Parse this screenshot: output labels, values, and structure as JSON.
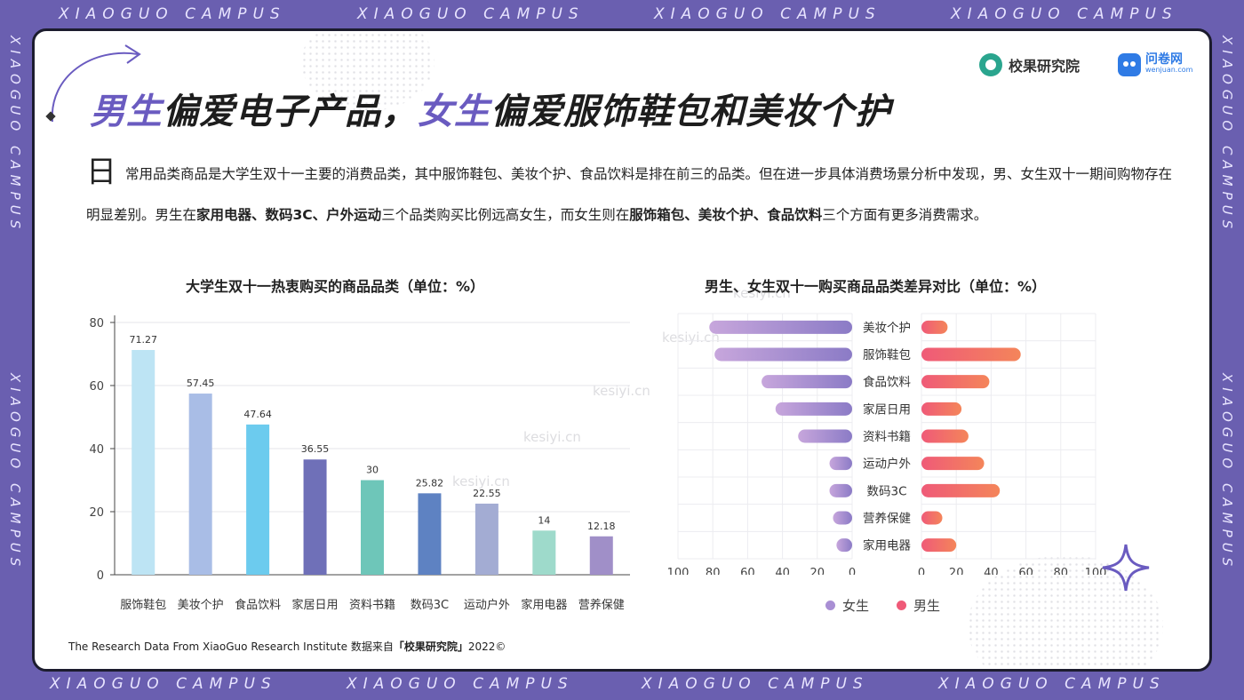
{
  "frame": {
    "left_text": "XIAOGUO  CAMPUS",
    "side_text": "XIAOGUO CAMPUS"
  },
  "logos": {
    "xiaoguo": "校果研究院",
    "wenjuan": "问卷网",
    "wenjuan_url": "wenjuan.com"
  },
  "title": {
    "part1_hl": "男生",
    "part1": "偏爱电子产品，",
    "part2_hl": "女生",
    "part2": "偏爱服饰鞋包和美妆个护"
  },
  "paragraph": {
    "dropcap": "日",
    "text1": "常用品类商品是大学生双十一主要的消费品类，其中服饰鞋包、美妆个护、食品饮料是排在前三的品类。但在进一步具体消费场景分析中发现，男、女生双十一期间购物存在明显差别。男生在",
    "bold1": "家用电器、数码3C、户外运动",
    "text2": "三个品类购买比例远高女生，而女生则在",
    "bold2": "服饰箱包、美妆个护、食品饮料",
    "text3": "三个方面有更多消费需求。"
  },
  "watermark": "kesiyi.cn",
  "footer": {
    "text": "The Research Data From XiaoGuo Research Institute 数据来自",
    "bold": "「校果研究院」",
    "year": "2022©"
  },
  "colors": {
    "accent": "#6a5bc0",
    "female_start": "#c7a6dc",
    "female_end": "#8b7bc6",
    "male_start": "#ef5a78",
    "male_end": "#f4855a"
  },
  "chart_data": [
    {
      "type": "bar",
      "title": "大学生双十一热衷购买的商品品类（单位：%）",
      "categories": [
        "服饰鞋包",
        "美妆个护",
        "食品饮料",
        "家居日用",
        "资料书籍",
        "数码3C",
        "运动户外",
        "家用电器",
        "营养保健"
      ],
      "values": [
        71.27,
        57.45,
        47.64,
        36.55,
        30,
        25.82,
        22.55,
        14,
        12.18
      ],
      "value_labels": [
        "71.27",
        "57.45",
        "47.64",
        "36.55",
        "30",
        "25.82",
        "22.55",
        "14",
        "12.18"
      ],
      "colors": [
        "#bde4f4",
        "#a9bde6",
        "#6ccbee",
        "#6f70b8",
        "#6ec6b9",
        "#5e82c2",
        "#a3acd3",
        "#9edacb",
        "#a08fc8"
      ],
      "ylim": [
        0,
        80
      ],
      "yticks": [
        "0",
        "20",
        "40",
        "60",
        "80"
      ],
      "grid": true
    },
    {
      "type": "bar",
      "orientation": "horizontal-diverging",
      "title": "男生、女生双十一购买商品品类差异对比（单位：%）",
      "categories": [
        "美妆个护",
        "服饰鞋包",
        "食品饮料",
        "家居日用",
        "资料书籍",
        "运动户外",
        "数码3C",
        "营养保健",
        "家用电器"
      ],
      "series": [
        {
          "name": "女生",
          "values": [
            82,
            79,
            52,
            44,
            31,
            13,
            13,
            11,
            9
          ]
        },
        {
          "name": "男生",
          "values": [
            15,
            57,
            39,
            23,
            27,
            36,
            45,
            12,
            20
          ]
        }
      ],
      "left_ticks": [
        "100",
        "80",
        "60",
        "40",
        "20",
        "0"
      ],
      "right_ticks": [
        "0",
        "20",
        "40",
        "60",
        "80",
        "100"
      ],
      "xlim": [
        0,
        100
      ],
      "legend": "bottom-center",
      "grid": true
    }
  ]
}
